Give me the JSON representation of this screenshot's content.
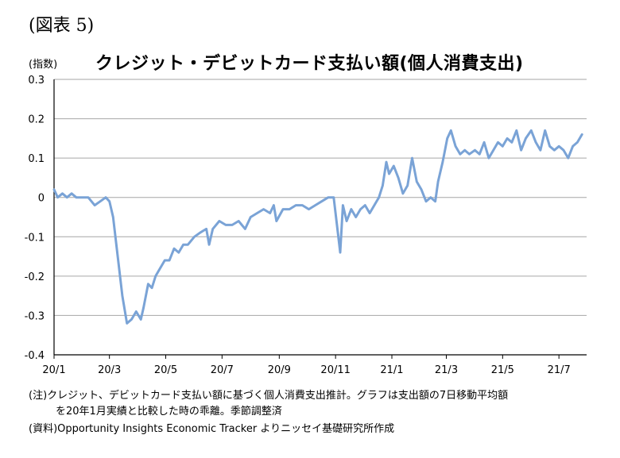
{
  "figure_label": "(図表 5)",
  "unit_label": "(指数)",
  "notes": {
    "note_line1": "(注)クレジット、デビットカード支払い額に基づく個人消費支出推計。グラフは支出額の7日移動平均額",
    "note_line2": "を20年1月実績と比較した時の乖離。季節調整済",
    "source": "(資料)Opportunity Insights Economic Tracker よりニッセイ基礎研究所作成"
  },
  "colors": {
    "line": "#7aa3d6",
    "grid": "#a6a6a6",
    "axis": "#000000"
  },
  "chart_data": {
    "type": "line",
    "title": "クレジット・デビットカード支払い額(個人消費支出)",
    "xlabel": "",
    "ylabel": "",
    "ylim": [
      -0.4,
      0.3
    ],
    "yticks": [
      0.3,
      0.2,
      0.1,
      0,
      -0.1,
      -0.2,
      -0.3,
      -0.4
    ],
    "ytick_labels": [
      "0.3",
      "0.2",
      "0.1",
      "0",
      "-0.1",
      "-0.2",
      "-0.3",
      "-0.4"
    ],
    "xticks": [
      "2020-01-01",
      "2020-03-01",
      "2020-05-01",
      "2020-07-01",
      "2020-09-01",
      "2020-11-01",
      "2021-01-01",
      "2021-03-01",
      "2021-05-01",
      "2021-07-01"
    ],
    "xtick_labels": [
      "20/1",
      "20/3",
      "20/5",
      "20/7",
      "20/9",
      "20/11",
      "21/1",
      "21/3",
      "21/5",
      "21/7"
    ],
    "x_range": [
      "2020-01-01",
      "2021-07-31"
    ],
    "grid": "horizontal",
    "series": [
      {
        "values": [
          [
            "2020-01-01",
            0.02
          ],
          [
            "2020-01-05",
            0.0
          ],
          [
            "2020-01-10",
            0.01
          ],
          [
            "2020-01-15",
            0.0
          ],
          [
            "2020-01-20",
            0.01
          ],
          [
            "2020-01-25",
            0.0
          ],
          [
            "2020-02-01",
            0.0
          ],
          [
            "2020-02-07",
            0.0
          ],
          [
            "2020-02-14",
            -0.02
          ],
          [
            "2020-02-20",
            -0.01
          ],
          [
            "2020-02-26",
            0.0
          ],
          [
            "2020-03-01",
            -0.01
          ],
          [
            "2020-03-05",
            -0.05
          ],
          [
            "2020-03-10",
            -0.15
          ],
          [
            "2020-03-15",
            -0.25
          ],
          [
            "2020-03-20",
            -0.32
          ],
          [
            "2020-03-25",
            -0.31
          ],
          [
            "2020-03-30",
            -0.29
          ],
          [
            "2020-04-04",
            -0.31
          ],
          [
            "2020-04-07",
            -0.28
          ],
          [
            "2020-04-12",
            -0.22
          ],
          [
            "2020-04-16",
            -0.23
          ],
          [
            "2020-04-20",
            -0.2
          ],
          [
            "2020-04-25",
            -0.18
          ],
          [
            "2020-04-30",
            -0.16
          ],
          [
            "2020-05-05",
            -0.16
          ],
          [
            "2020-05-10",
            -0.13
          ],
          [
            "2020-05-15",
            -0.14
          ],
          [
            "2020-05-20",
            -0.12
          ],
          [
            "2020-05-25",
            -0.12
          ],
          [
            "2020-06-01",
            -0.1
          ],
          [
            "2020-06-07",
            -0.09
          ],
          [
            "2020-06-14",
            -0.08
          ],
          [
            "2020-06-17",
            -0.12
          ],
          [
            "2020-06-21",
            -0.08
          ],
          [
            "2020-06-28",
            -0.06
          ],
          [
            "2020-07-05",
            -0.07
          ],
          [
            "2020-07-12",
            -0.07
          ],
          [
            "2020-07-19",
            -0.06
          ],
          [
            "2020-07-26",
            -0.08
          ],
          [
            "2020-08-01",
            -0.05
          ],
          [
            "2020-08-08",
            -0.04
          ],
          [
            "2020-08-15",
            -0.03
          ],
          [
            "2020-08-22",
            -0.04
          ],
          [
            "2020-08-26",
            -0.02
          ],
          [
            "2020-08-29",
            -0.06
          ],
          [
            "2020-09-05",
            -0.03
          ],
          [
            "2020-09-12",
            -0.03
          ],
          [
            "2020-09-19",
            -0.02
          ],
          [
            "2020-09-26",
            -0.02
          ],
          [
            "2020-10-03",
            -0.03
          ],
          [
            "2020-10-10",
            -0.02
          ],
          [
            "2020-10-17",
            -0.01
          ],
          [
            "2020-10-24",
            0.0
          ],
          [
            "2020-10-30",
            0.0
          ],
          [
            "2020-11-03",
            -0.08
          ],
          [
            "2020-11-06",
            -0.14
          ],
          [
            "2020-11-09",
            -0.02
          ],
          [
            "2020-11-13",
            -0.06
          ],
          [
            "2020-11-18",
            -0.03
          ],
          [
            "2020-11-23",
            -0.05
          ],
          [
            "2020-11-28",
            -0.03
          ],
          [
            "2020-12-03",
            -0.02
          ],
          [
            "2020-12-08",
            -0.04
          ],
          [
            "2020-12-13",
            -0.02
          ],
          [
            "2020-12-18",
            0.0
          ],
          [
            "2020-12-22",
            0.03
          ],
          [
            "2020-12-26",
            0.09
          ],
          [
            "2020-12-29",
            0.06
          ],
          [
            "2021-01-03",
            0.08
          ],
          [
            "2021-01-08",
            0.05
          ],
          [
            "2021-01-13",
            0.01
          ],
          [
            "2021-01-18",
            0.03
          ],
          [
            "2021-01-23",
            0.1
          ],
          [
            "2021-01-28",
            0.04
          ],
          [
            "2021-02-02",
            0.02
          ],
          [
            "2021-02-07",
            -0.01
          ],
          [
            "2021-02-12",
            0.0
          ],
          [
            "2021-02-17",
            -0.01
          ],
          [
            "2021-02-20",
            0.04
          ],
          [
            "2021-02-25",
            0.09
          ],
          [
            "2021-03-02",
            0.15
          ],
          [
            "2021-03-06",
            0.17
          ],
          [
            "2021-03-11",
            0.13
          ],
          [
            "2021-03-16",
            0.11
          ],
          [
            "2021-03-21",
            0.12
          ],
          [
            "2021-03-26",
            0.11
          ],
          [
            "2021-04-01",
            0.12
          ],
          [
            "2021-04-06",
            0.11
          ],
          [
            "2021-04-11",
            0.14
          ],
          [
            "2021-04-16",
            0.1
          ],
          [
            "2021-04-21",
            0.12
          ],
          [
            "2021-04-26",
            0.14
          ],
          [
            "2021-05-01",
            0.13
          ],
          [
            "2021-05-06",
            0.15
          ],
          [
            "2021-05-11",
            0.14
          ],
          [
            "2021-05-16",
            0.17
          ],
          [
            "2021-05-21",
            0.12
          ],
          [
            "2021-05-26",
            0.15
          ],
          [
            "2021-06-01",
            0.17
          ],
          [
            "2021-06-06",
            0.14
          ],
          [
            "2021-06-11",
            0.12
          ],
          [
            "2021-06-16",
            0.17
          ],
          [
            "2021-06-21",
            0.13
          ],
          [
            "2021-06-26",
            0.12
          ],
          [
            "2021-07-01",
            0.13
          ],
          [
            "2021-07-06",
            0.12
          ],
          [
            "2021-07-11",
            0.1
          ],
          [
            "2021-07-16",
            0.13
          ],
          [
            "2021-07-21",
            0.14
          ],
          [
            "2021-07-26",
            0.16
          ]
        ]
      }
    ]
  }
}
